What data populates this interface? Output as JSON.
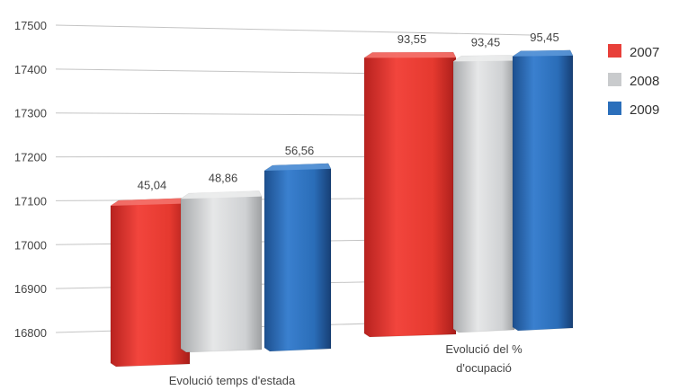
{
  "chart_data": {
    "type": "bar",
    "categories": [
      "Evolució temps d'estada",
      "Evolució del % d'ocupació"
    ],
    "category_lines": [
      [
        "Evolució temps d'estada"
      ],
      [
        "Evolució del %",
        "d'ocupació"
      ]
    ],
    "series": [
      {
        "name": "2007",
        "color": "#e8403a",
        "values": [
          17100,
          17450
        ],
        "labels": [
          "45,04",
          "93,55"
        ]
      },
      {
        "name": "2008",
        "color": "#c9cbcd",
        "values": [
          17115,
          17445
        ],
        "labels": [
          "48,86",
          "93,45"
        ]
      },
      {
        "name": "2009",
        "color": "#2b6fbb",
        "values": [
          17180,
          17460
        ],
        "labels": [
          "56,56",
          "95,45"
        ]
      }
    ],
    "yticks": [
      16800,
      16900,
      17000,
      17100,
      17200,
      17300,
      17400,
      17500
    ],
    "ylim": [
      16800,
      17500
    ],
    "grid": true,
    "legend": "right",
    "style": "3d-perspective"
  }
}
